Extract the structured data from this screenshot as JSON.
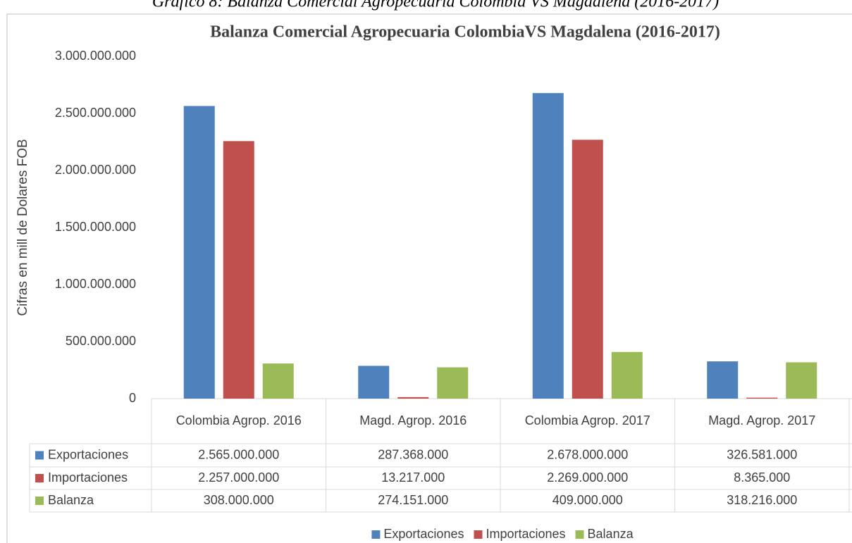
{
  "caption": "Gráfico 8: Balanza Comercial Agropecuaria Colombia VS Magdalena (2016-2017)",
  "chart_data": {
    "type": "bar",
    "title": "Balanza Comercial Agropecuaria ColombiaVS Magdalena (2016-2017)",
    "y_label": "Cifras en mill de Dolares FOB",
    "categories": [
      "Colombia Agrop. 2016",
      "Magd. Agrop. 2016",
      "Colombia Agrop. 2017",
      "Magd. Agrop. 2017"
    ],
    "series": [
      {
        "name": "Exportaciones",
        "color": "#4f81bd",
        "values": [
          2565000000,
          287368000,
          2678000000,
          326581000
        ],
        "value_labels": [
          "2.565.000.000",
          "287.368.000",
          "2.678.000.000",
          "326.581.000"
        ]
      },
      {
        "name": "Importaciones",
        "color": "#c0504d",
        "values": [
          2257000000,
          13217000,
          2269000000,
          8365000
        ],
        "value_labels": [
          "2.257.000.000",
          "13.217.000",
          "2.269.000.000",
          "8.365.000"
        ]
      },
      {
        "name": "Balanza",
        "color": "#9bbb59",
        "values": [
          308000000,
          274151000,
          409000000,
          318216000
        ],
        "value_labels": [
          "308.000.000",
          "274.151.000",
          "409.000.000",
          "318.216.000"
        ]
      }
    ],
    "ylim": [
      0,
      3000000000
    ],
    "yticks": [
      0,
      {
        "value": 500000000,
        "label": "500.000.000"
      },
      {
        "value": 1000000000,
        "label": "1.000.000.000"
      },
      {
        "value": 1500000000,
        "label": "1.500.000.000"
      },
      {
        "value": 2000000000,
        "label": "2.000.000.000"
      },
      {
        "value": 2500000000,
        "label": "2.500.000.000"
      },
      {
        "value": 3000000000,
        "label": "3.000.000.000"
      }
    ],
    "grid": false,
    "legend": "bottom"
  }
}
